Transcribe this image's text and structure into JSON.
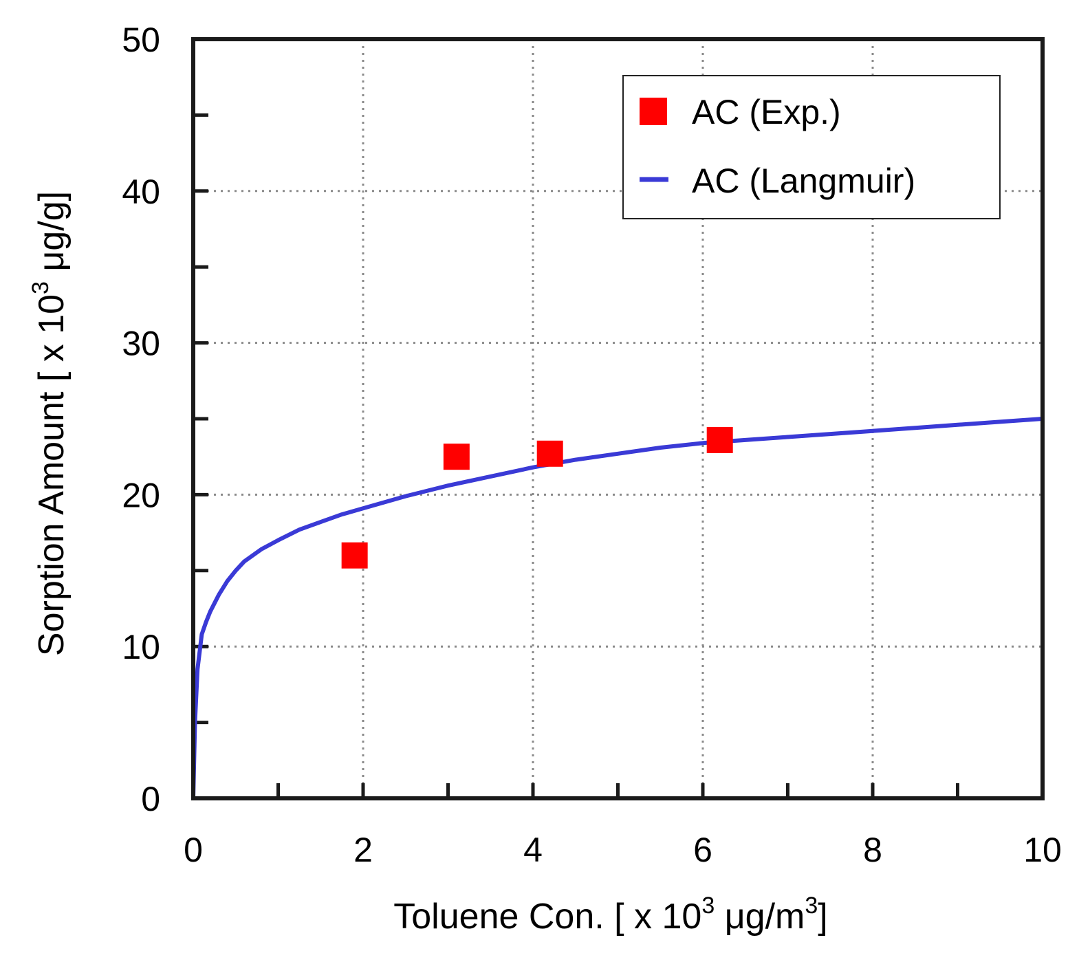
{
  "chart_data": {
    "type": "scatter",
    "title": "",
    "xlabel": {
      "prefix": "Toluene Con. [ x 10",
      "exp": "3",
      "mid": " μg/m",
      "exp2": "3",
      "suffix": "]"
    },
    "ylabel": {
      "prefix": "Sorption Amount [ x 10",
      "exp": "3",
      "suffix": " μg/g]"
    },
    "xlim": [
      0,
      10
    ],
    "ylim": [
      0,
      50
    ],
    "xticks": [
      0,
      2,
      4,
      6,
      8,
      10
    ],
    "yticks": [
      0,
      10,
      20,
      30,
      40,
      50
    ],
    "xticklabels": [
      "0",
      "2",
      "4",
      "6",
      "8",
      "10"
    ],
    "yticklabels": [
      "0",
      "10",
      "20",
      "30",
      "40",
      "50"
    ],
    "x_minor_step": 1,
    "y_minor_step": 5,
    "grid": true,
    "legend_position": "top-right",
    "series": [
      {
        "name": "AC (Exp.)",
        "kind": "scatter",
        "marker": "square",
        "color": "#ff0000",
        "x": [
          1.9,
          3.1,
          4.2,
          6.2
        ],
        "y": [
          16.0,
          22.5,
          22.7,
          23.6
        ]
      },
      {
        "name": "AC (Langmuir)",
        "kind": "line",
        "color": "#3a3ad6",
        "x": [
          0,
          0.02,
          0.05,
          0.1,
          0.15,
          0.2,
          0.3,
          0.4,
          0.5,
          0.6,
          0.8,
          1.0,
          1.25,
          1.5,
          1.75,
          2.0,
          2.5,
          3.0,
          3.5,
          4.0,
          4.5,
          5.0,
          5.5,
          6.0,
          6.5,
          7.0,
          7.5,
          8.0,
          8.5,
          9.0,
          9.5,
          10.0
        ],
        "y": [
          0,
          5.0,
          8.5,
          10.8,
          11.6,
          12.3,
          13.4,
          14.3,
          15.0,
          15.6,
          16.4,
          17.0,
          17.7,
          18.2,
          18.7,
          19.1,
          19.9,
          20.6,
          21.2,
          21.8,
          22.3,
          22.7,
          23.1,
          23.4,
          23.6,
          23.8,
          24.0,
          24.2,
          24.4,
          24.6,
          24.8,
          25.0
        ]
      }
    ]
  }
}
